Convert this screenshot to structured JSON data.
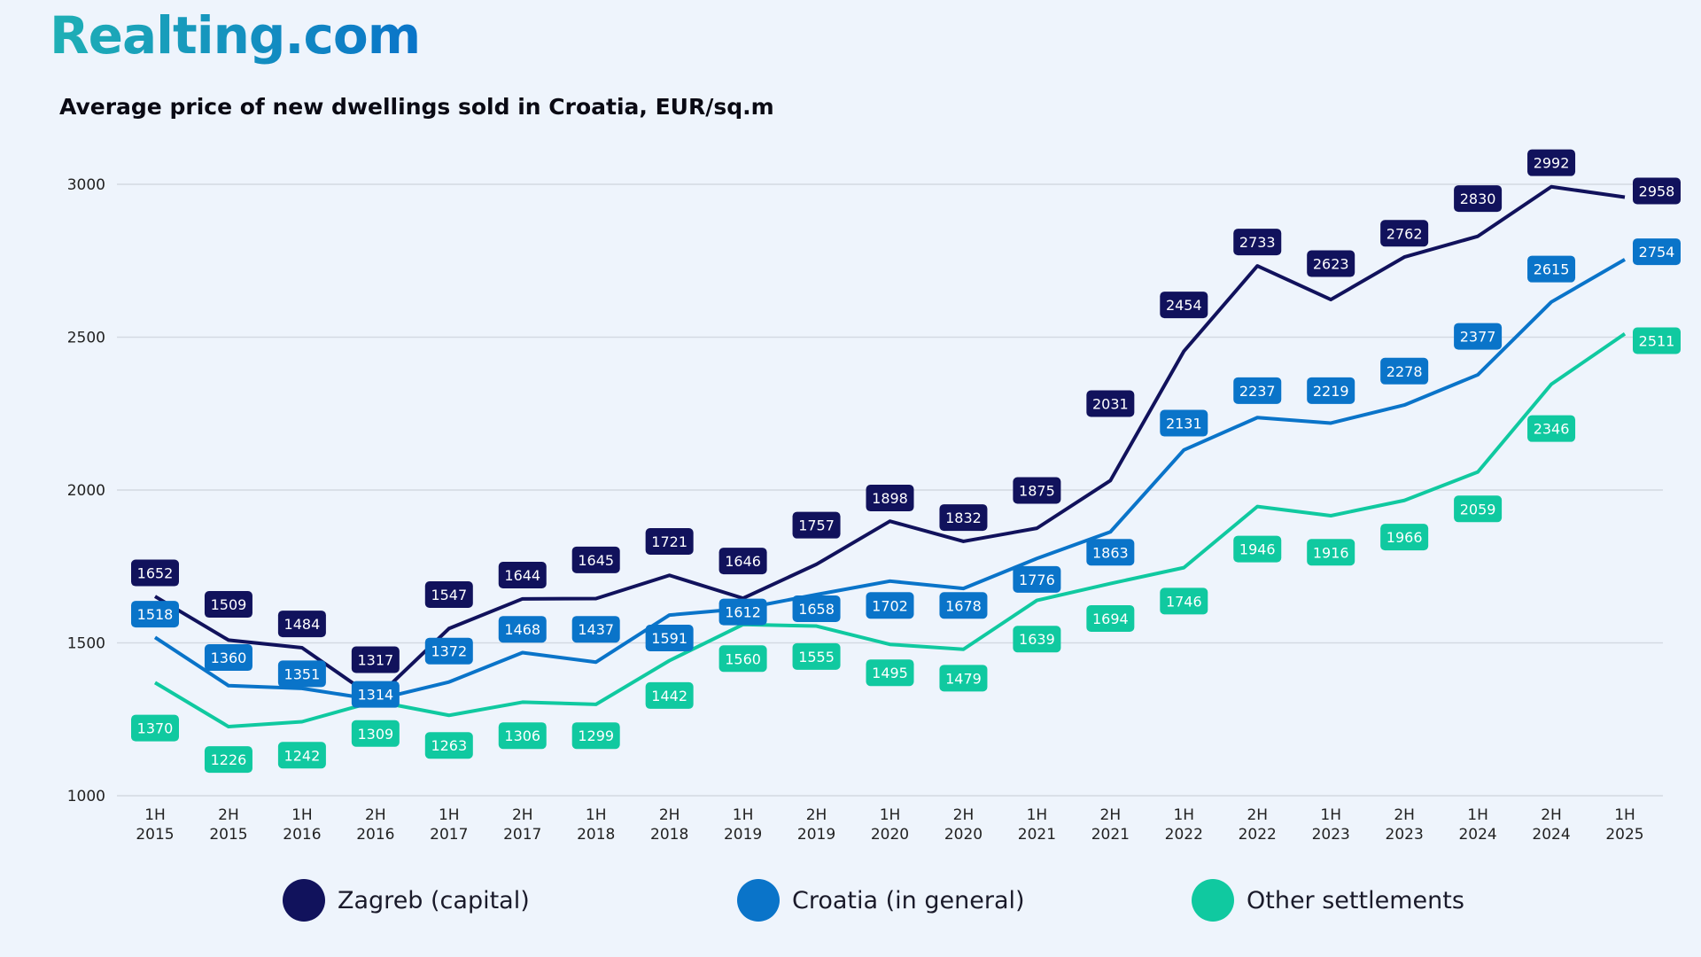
{
  "logo": "Realting.com",
  "chart_data": {
    "type": "line",
    "title": "Average price of new dwellings sold in Croatia, EUR/sq.m",
    "categories": [
      [
        "1H",
        "2015"
      ],
      [
        "2H",
        "2015"
      ],
      [
        "1H",
        "2016"
      ],
      [
        "2H",
        "2016"
      ],
      [
        "1H",
        "2017"
      ],
      [
        "2H",
        "2017"
      ],
      [
        "1H",
        "2018"
      ],
      [
        "2H",
        "2018"
      ],
      [
        "1H",
        "2019"
      ],
      [
        "2H",
        "2019"
      ],
      [
        "1H",
        "2020"
      ],
      [
        "2H",
        "2020"
      ],
      [
        "1H",
        "2021"
      ],
      [
        "2H",
        "2021"
      ],
      [
        "1H",
        "2022"
      ],
      [
        "2H",
        "2022"
      ],
      [
        "1H",
        "2023"
      ],
      [
        "2H",
        "2023"
      ],
      [
        "1H",
        "2024"
      ],
      [
        "2H",
        "2024"
      ],
      [
        "1H",
        "2025"
      ]
    ],
    "ylim": [
      1000,
      3000
    ],
    "yticks": [
      1000,
      1500,
      2000,
      2500,
      3000
    ],
    "grid": "horizontal",
    "legend_position": "bottom",
    "series": [
      {
        "name": "Zagreb (capital)",
        "color": "#11125c",
        "values": [
          1652,
          1509,
          1484,
          1317,
          1547,
          1644,
          1645,
          1721,
          1646,
          1757,
          1898,
          1832,
          1875,
          2031,
          2454,
          2733,
          2623,
          2762,
          2830,
          2992,
          2958
        ]
      },
      {
        "name": "Croatia (in general)",
        "color": "#0a74c9",
        "values": [
          1518,
          1360,
          1351,
          1314,
          1372,
          1468,
          1437,
          1591,
          1612,
          1658,
          1702,
          1678,
          1776,
          1863,
          2131,
          2237,
          2219,
          2278,
          2377,
          2615,
          2754
        ]
      },
      {
        "name": "Other settlements",
        "color": "#10c9a0",
        "values": [
          1370,
          1226,
          1242,
          1309,
          1263,
          1306,
          1299,
          1442,
          1560,
          1555,
          1495,
          1479,
          1639,
          1694,
          1746,
          1946,
          1916,
          1966,
          2059,
          2346,
          2511
        ]
      }
    ]
  }
}
